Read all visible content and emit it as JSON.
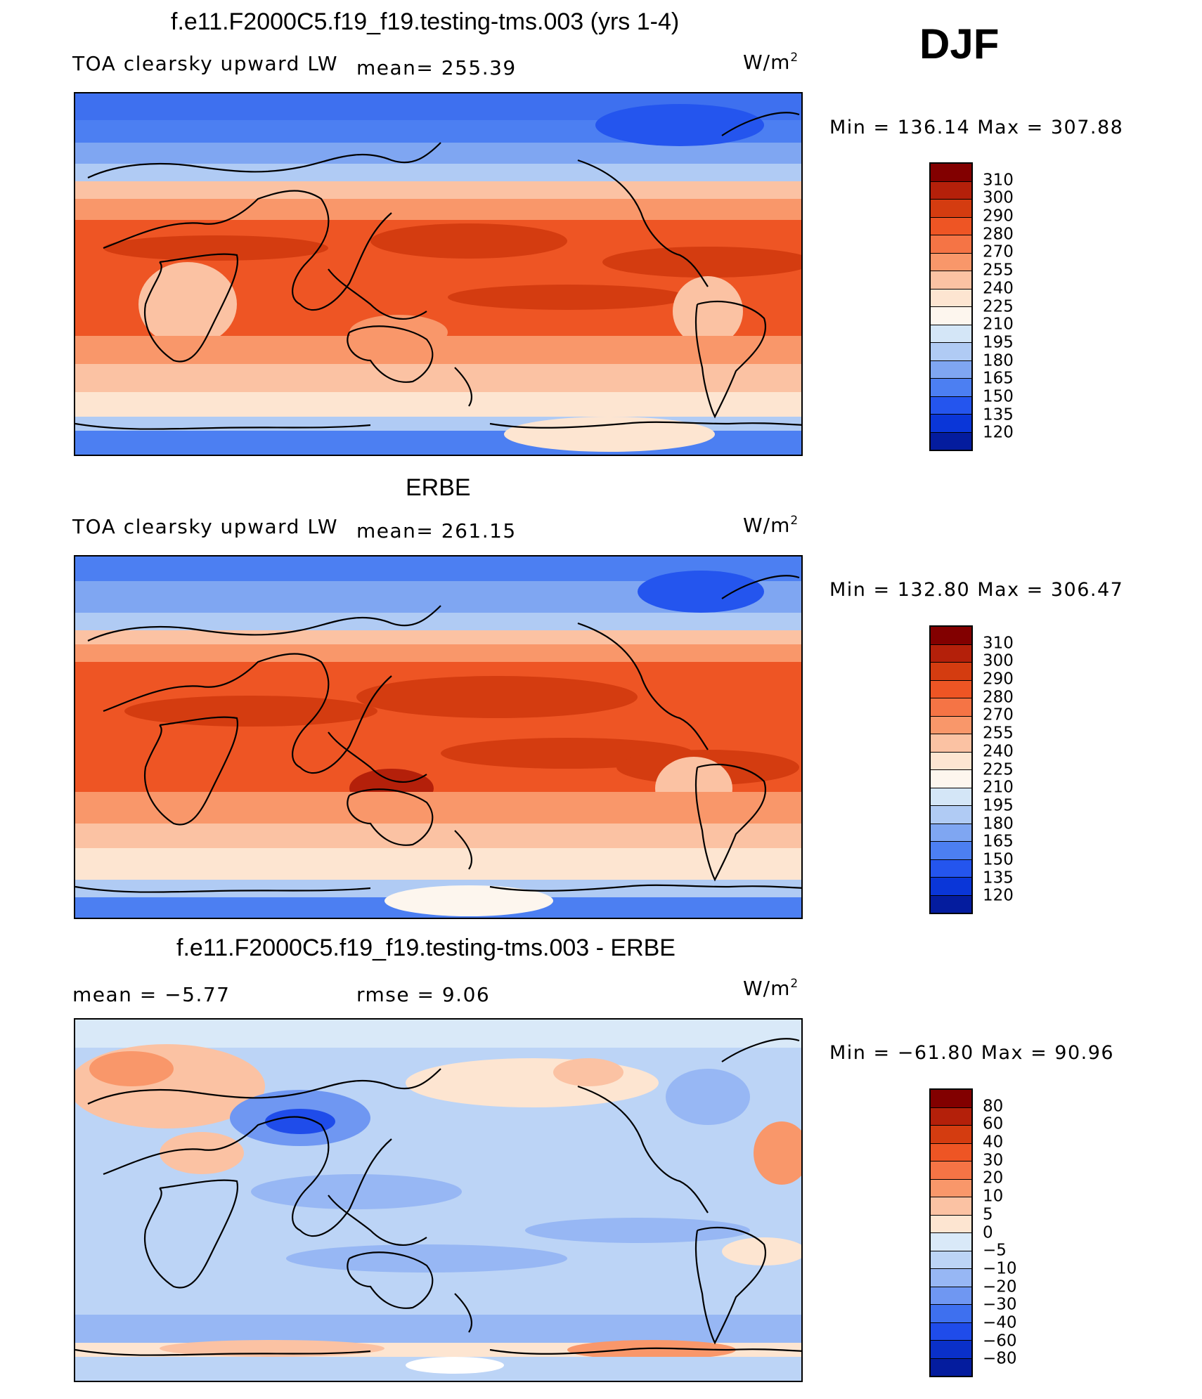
{
  "season": "DJF",
  "units_text": "W/m",
  "units_sup": "2",
  "panels": [
    {
      "title": "f.e11.F2000C5.f19_f19.testing-tms.003 (yrs 1-4)",
      "variable": "TOA clearsky upward LW",
      "stat1": "mean=  255.39",
      "stat2": "",
      "minmax": "Min  =  136.14  Max  =  307.88"
    },
    {
      "title": "ERBE",
      "variable": "TOA clearsky upward LW",
      "stat1": "mean=  261.15",
      "stat2": "",
      "minmax": "Min  =  132.80  Max  =  306.47"
    },
    {
      "title": "f.e11.F2000C5.f19_f19.testing-tms.003 - ERBE",
      "variable": "",
      "stat1": "mean  =    −5.77",
      "stat2": "rmse  =     9.06",
      "minmax": "Min  =  −61.80  Max  =    90.96"
    }
  ],
  "colorbars": {
    "field": {
      "labels": [
        "310",
        "300",
        "290",
        "280",
        "270",
        "255",
        "240",
        "225",
        "210",
        "195",
        "180",
        "165",
        "150",
        "135",
        "120"
      ],
      "colors": [
        "#820000",
        "#b4200a",
        "#d43c10",
        "#ee5524",
        "#f57445",
        "#f9976a",
        "#fbc2a3",
        "#fde5d1",
        "#fdf6ee",
        "#d4e6f7",
        "#b0cbf4",
        "#7fa6f2",
        "#4c7ff2",
        "#2455ee",
        "#0a36d8",
        "#041c9e"
      ]
    },
    "diff": {
      "labels": [
        "80",
        "60",
        "40",
        "30",
        "20",
        "10",
        "5",
        "0",
        "−5",
        "−10",
        "−20",
        "−30",
        "−40",
        "−60",
        "−80"
      ],
      "colors": [
        "#820000",
        "#b4200a",
        "#d43c10",
        "#ee5524",
        "#f57445",
        "#f9976a",
        "#fbc2a3",
        "#fde5d1",
        "#d9e9f8",
        "#bcd4f6",
        "#97b7f4",
        "#6f97f2",
        "#3e70ef",
        "#1f4cea",
        "#0a30c9",
        "#041c9e"
      ]
    }
  }
}
